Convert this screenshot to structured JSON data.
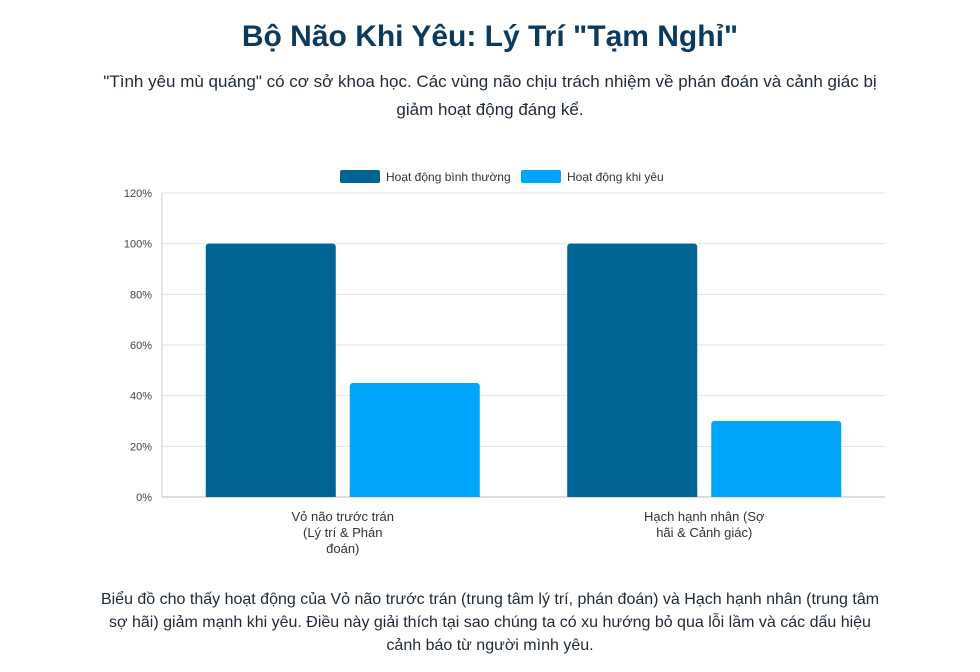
{
  "header": {
    "title": "Bộ Não Khi Yêu: Lý Trí \"Tạm Nghỉ\"",
    "subtitle": "\"Tình yêu mù quáng\" có cơ sở khoa học. Các vùng não chịu trách nhiệm về phán đoán và cảnh giác bị giảm hoạt động đáng kể."
  },
  "chart_data": {
    "type": "bar",
    "categories": [
      [
        "Vỏ não trước trán",
        "(Lý trí & Phán",
        "đoán)"
      ],
      [
        "Hạch hạnh nhân (Sợ",
        "hãi & Cảnh giác)"
      ]
    ],
    "series": [
      {
        "name": "Hoạt động bình thường",
        "values": [
          100,
          100
        ],
        "color": "#006494"
      },
      {
        "name": "Hoạt động khi yêu",
        "values": [
          45,
          30
        ],
        "color": "#00a6fb"
      }
    ],
    "ylim": [
      0,
      120
    ],
    "yticks": [
      "0%",
      "20%",
      "40%",
      "60%",
      "80%",
      "100%",
      "120%"
    ],
    "ytick_values": [
      0,
      20,
      40,
      60,
      80,
      100,
      120
    ],
    "grid": true,
    "legend": "top-center",
    "xlabel": "",
    "ylabel": ""
  },
  "caption": "Biểu đồ cho thấy hoạt động của Vỏ não trước trán (trung tâm lý trí, phán đoán) và Hạch hạnh nhân (trung tâm sợ hãi) giảm mạnh khi yêu. Điều này giải thích tại sao chúng ta có xu hướng bỏ qua lỗi lầm và các dấu hiệu cảnh báo từ người mình yêu."
}
